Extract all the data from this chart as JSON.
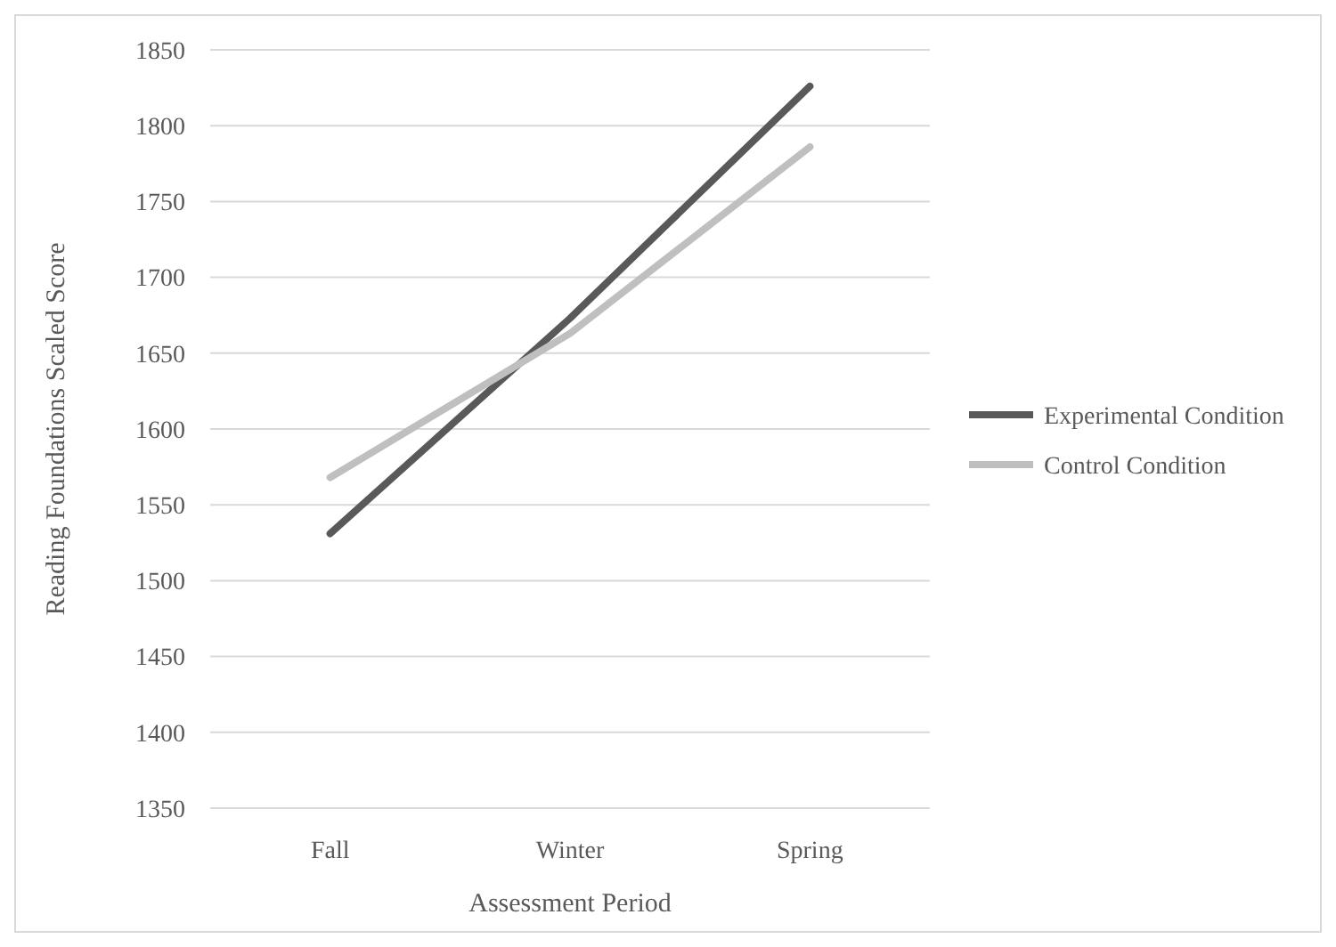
{
  "chart_data": {
    "type": "line",
    "xlabel": "Assessment Period",
    "ylabel": "Reading Foundations Scaled Score",
    "categories": [
      "Fall",
      "Winter",
      "Spring"
    ],
    "series": [
      {
        "name": "Experimental Condition",
        "color": "#595959",
        "values": [
          1531,
          1673,
          1826
        ]
      },
      {
        "name": "Control Condition",
        "color": "#bfbfbf",
        "values": [
          1568,
          1663,
          1786
        ]
      }
    ],
    "ylim": [
      1350,
      1850
    ],
    "yticks": [
      1350,
      1400,
      1450,
      1500,
      1550,
      1600,
      1650,
      1700,
      1750,
      1800,
      1850
    ],
    "grid": "y",
    "legend": "right",
    "marker": "none",
    "line_style": "solid"
  }
}
